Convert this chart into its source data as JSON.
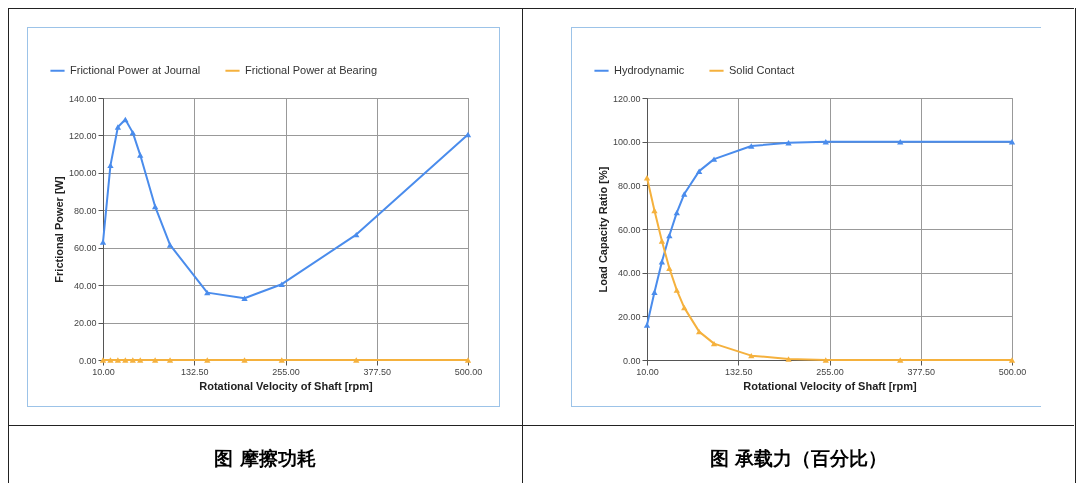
{
  "chart_data": [
    {
      "type": "line",
      "xlabel": "Rotational Velocity of Shaft [rpm]",
      "ylabel": "Frictional Power [W]",
      "annotations": [
        "图 摩擦功耗"
      ],
      "x": [
        10,
        20,
        30,
        40,
        50,
        60,
        80,
        100,
        150,
        200,
        250,
        350,
        500
      ],
      "series": [
        {
          "name": "Frictional Power at Journal",
          "color": "#4a8cec",
          "values": [
            63,
            104,
            124.5,
            128.5,
            121.5,
            109.5,
            82,
            61.5,
            36,
            33,
            40.5,
            67,
            120.5
          ]
        },
        {
          "name": "Frictional Power at Bearing",
          "color": "#f5b13d",
          "values": [
            0,
            0,
            0,
            0,
            0,
            0,
            0,
            0,
            0,
            0,
            0,
            0,
            0
          ]
        }
      ],
      "xlim": [
        10,
        500
      ],
      "xticks": [
        {
          "value": 10,
          "label": "10.00"
        },
        {
          "value": 132.5,
          "label": "132.50"
        },
        {
          "value": 255,
          "label": "255.00"
        },
        {
          "value": 377.5,
          "label": "377.50"
        },
        {
          "value": 500,
          "label": "500.00"
        }
      ],
      "ylim": [
        0,
        140
      ],
      "yticks": [
        {
          "value": 0,
          "label": "0.00"
        },
        {
          "value": 20,
          "label": "20.00"
        },
        {
          "value": 40,
          "label": "40.00"
        },
        {
          "value": 60,
          "label": "60.00"
        },
        {
          "value": 80,
          "label": "80.00"
        },
        {
          "value": 100,
          "label": "100.00"
        },
        {
          "value": 120,
          "label": "120.00"
        },
        {
          "value": 140,
          "label": "140.00"
        }
      ],
      "grid": true,
      "legend": "top left",
      "marker": "triangle",
      "line_style": "solid"
    },
    {
      "type": "line",
      "xlabel": "Rotational Velocity of Shaft [rpm]",
      "ylabel": "Load Capacity Ratio [%]",
      "annotations": [
        "图 承载力（百分比）"
      ],
      "x": [
        10,
        20,
        30,
        40,
        50,
        60,
        80,
        100,
        150,
        200,
        250,
        350,
        500
      ],
      "series": [
        {
          "name": "Hydrodynamic",
          "color": "#4a8cec",
          "values": [
            16,
            31,
            45,
            57,
            67.5,
            76,
            86.5,
            92,
            98,
            99.5,
            100,
            100,
            100
          ]
        },
        {
          "name": "Solid Contact",
          "color": "#f5b13d",
          "values": [
            83.5,
            68.5,
            54.5,
            42,
            32,
            24,
            13,
            7.5,
            2,
            0.5,
            0,
            0,
            0
          ]
        }
      ],
      "xlim": [
        10,
        500
      ],
      "xticks": [
        {
          "value": 10,
          "label": "10.00"
        },
        {
          "value": 132.5,
          "label": "132.50"
        },
        {
          "value": 255,
          "label": "255.00"
        },
        {
          "value": 377.5,
          "label": "377.50"
        },
        {
          "value": 500,
          "label": "500.00"
        }
      ],
      "ylim": [
        0,
        120
      ],
      "yticks": [
        {
          "value": 0,
          "label": "0.00"
        },
        {
          "value": 20,
          "label": "20.00"
        },
        {
          "value": 40,
          "label": "40.00"
        },
        {
          "value": 60,
          "label": "60.00"
        },
        {
          "value": 80,
          "label": "80.00"
        },
        {
          "value": 100,
          "label": "100.00"
        },
        {
          "value": 120,
          "label": "120.00"
        }
      ],
      "grid": true,
      "legend": "top left",
      "marker": "triangle",
      "line_style": "solid"
    }
  ]
}
